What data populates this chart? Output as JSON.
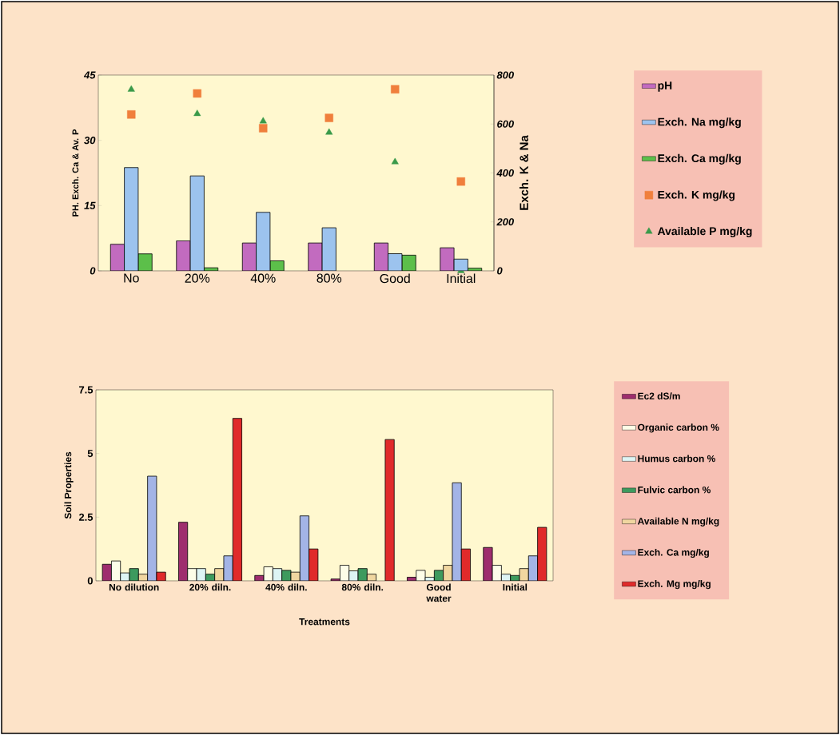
{
  "chart_data": [
    {
      "type": "bar",
      "categories": [
        "No",
        "20%",
        "40%",
        "80%",
        "Good",
        "Initial"
      ],
      "ylabel": "PH. Exch. Ca & Av. P",
      "y2label": "Exch. K & Na",
      "ylim": [
        0,
        45
      ],
      "yticks": [
        0,
        15,
        30,
        45
      ],
      "y2lim": [
        0,
        800
      ],
      "y2ticks": [
        0,
        200,
        400,
        600,
        800
      ],
      "legend": "right",
      "series": [
        {
          "name": "pH",
          "color": "#c26bbf",
          "values": [
            6.1,
            6.9,
            6.4,
            6.4,
            6.4,
            5.3
          ]
        },
        {
          "name": "Exch. Na mg/kg",
          "color": "#9cc3ee",
          "axis": "y2",
          "values": [
            422,
            388,
            239,
            176,
            70,
            48
          ]
        },
        {
          "name": "Exch. Ca mg/kg",
          "color": "#5cbf4a",
          "values": [
            3.9,
            0.7,
            2.3,
            null,
            3.6,
            0.6
          ]
        },
        {
          "name": "Exch. K mg/kg",
          "color": "#f07f3c",
          "type": "scatter",
          "marker": "square",
          "axis": "y2",
          "values": [
            639,
            725,
            583,
            625,
            742,
            365
          ]
        },
        {
          "name": "Available P mg/kg",
          "color": "#3a9a4a",
          "type": "scatter",
          "marker": "triangle",
          "values": [
            41.7,
            36.1,
            34.4,
            31.8,
            25.0,
            0
          ]
        }
      ]
    },
    {
      "type": "bar",
      "categories": [
        "No dilution",
        "20% diln.",
        "40% diln.",
        "80% diln.",
        "Good water",
        "Initial"
      ],
      "xlabel": "Treatments",
      "ylabel": "Soil Properties",
      "ylim": [
        0,
        7.5
      ],
      "yticks": [
        0,
        2.5,
        5,
        7.5
      ],
      "legend": "right",
      "series": [
        {
          "name": "Ec2 dS/m",
          "color": "#9e2d6e",
          "values": [
            0.65,
            2.3,
            0.21,
            0.07,
            0.14,
            1.31
          ]
        },
        {
          "name": "Organic carbon %",
          "color": "#fdfde8",
          "values": [
            0.78,
            0.48,
            0.55,
            0.61,
            0.41,
            0.61
          ]
        },
        {
          "name": "Humus carbon %",
          "color": "#ddf4f4",
          "values": [
            0.31,
            0.48,
            0.48,
            0.39,
            0.14,
            0.26
          ]
        },
        {
          "name": "Fulvic carbon %",
          "color": "#3d9a5e",
          "values": [
            0.48,
            0.26,
            0.41,
            0.48,
            0.41,
            0.21
          ]
        },
        {
          "name": "Available N mg/kg",
          "color": "#f0d6a0",
          "values": [
            0.26,
            0.48,
            0.34,
            0.26,
            0.61,
            0.48
          ]
        },
        {
          "name": "Exch. Ca mg/kg",
          "color": "#a3b4e6",
          "values": [
            4.11,
            0.98,
            2.55,
            null,
            3.85,
            0.98
          ]
        },
        {
          "name": "Exch. Mg mg/kg",
          "color": "#e02a2a",
          "values": [
            0.34,
            6.38,
            1.25,
            5.55,
            1.25,
            2.1
          ]
        }
      ]
    }
  ]
}
